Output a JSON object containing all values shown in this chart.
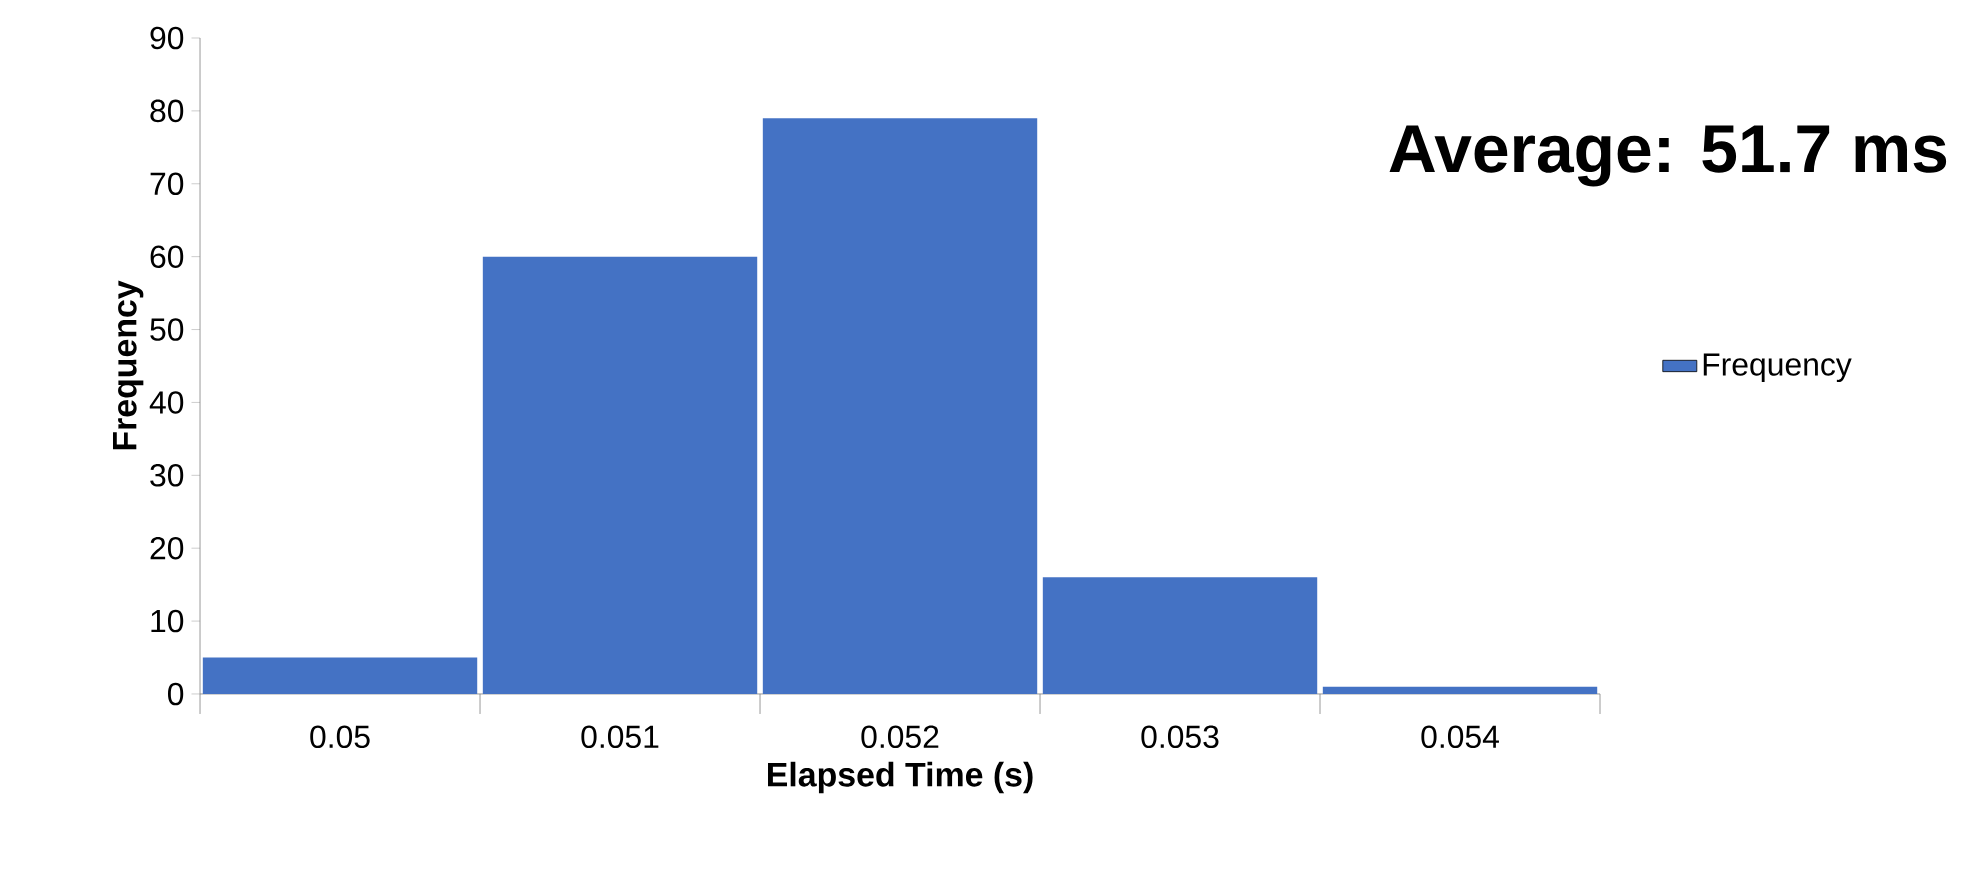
{
  "chart_data": {
    "type": "bar",
    "categories": [
      "0.05",
      "0.051",
      "0.052",
      "0.053",
      "0.054"
    ],
    "series": [
      {
        "name": "Frequency",
        "color": "#4472c4",
        "values": [
          5,
          60,
          79,
          16,
          1
        ]
      }
    ],
    "xlabel": "Elapsed Time (s)",
    "ylabel": "Frequency",
    "ylim": [
      0,
      90
    ],
    "yticks": [
      0,
      10,
      20,
      30,
      40,
      50,
      60,
      70,
      80,
      90
    ],
    "annotations": [
      "Average: 51.7 ms"
    ],
    "legend": "right",
    "grid": false
  }
}
